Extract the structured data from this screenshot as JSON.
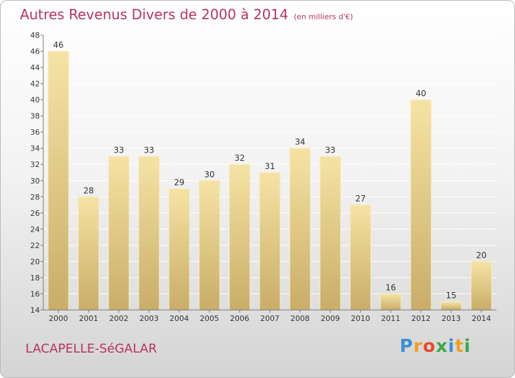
{
  "header": {
    "title": "Autres Revenus Divers de 2000 à 2014",
    "subtitle": "(en milliers d'€)"
  },
  "footer": {
    "commune": "LACAPELLE-SéGALAR",
    "logo_letters": [
      "P",
      "r",
      "o",
      "x",
      "i",
      "t",
      "i"
    ],
    "logo_colors": [
      "#3a8fd6",
      "#f0a020",
      "#e84a2a",
      "#3aa84a",
      "#3a8fd6",
      "#f0a020",
      "#3aa84a"
    ]
  },
  "colors": {
    "title": "#b5345f",
    "bar_light": "#f6e3a4",
    "bar_dark": "#c9ad68",
    "axis": "#777777",
    "grid": "#ffffff"
  },
  "chart_data": {
    "type": "bar",
    "categories": [
      "2000",
      "2001",
      "2002",
      "2003",
      "2004",
      "2005",
      "2006",
      "2007",
      "2008",
      "2009",
      "2010",
      "2011",
      "2012",
      "2013",
      "2014"
    ],
    "values": [
      46,
      28,
      33,
      33,
      29,
      30,
      32,
      31,
      34,
      33,
      27,
      16,
      40,
      15,
      20
    ],
    "ylim": [
      14,
      48
    ],
    "yticks": [
      14,
      16,
      18,
      20,
      22,
      24,
      26,
      28,
      30,
      32,
      34,
      36,
      38,
      40,
      42,
      44,
      46,
      48
    ],
    "grid": true
  }
}
